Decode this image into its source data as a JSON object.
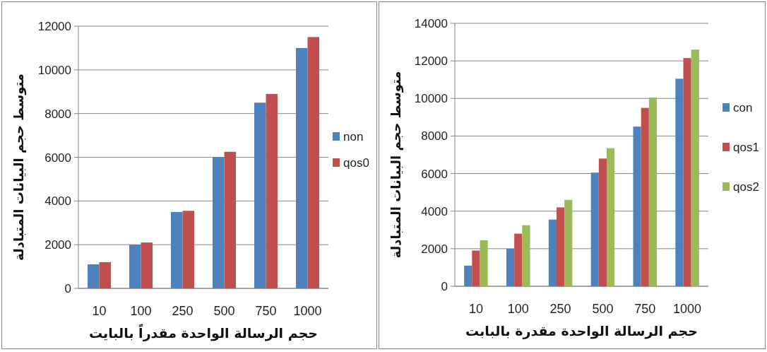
{
  "chart_data": [
    {
      "type": "bar",
      "categories": [
        "10",
        "100",
        "250",
        "500",
        "750",
        "1000"
      ],
      "xlabel": "حجم الرسالة الواحدة مقدراً بالبايت",
      "ylabel": "متوسط حجم البيانات المتبادلة",
      "ylim": [
        0,
        12000
      ],
      "yticks": [
        0,
        2000,
        4000,
        6000,
        8000,
        10000,
        12000
      ],
      "grid": "y",
      "legend": "right",
      "series": [
        {
          "name": "non",
          "color": "#4f81bd",
          "values": [
            1100,
            2000,
            3500,
            6000,
            8500,
            11000
          ]
        },
        {
          "name": "qos0",
          "color": "#c0504d",
          "values": [
            1200,
            2100,
            3550,
            6250,
            8900,
            11500
          ]
        }
      ]
    },
    {
      "type": "bar",
      "categories": [
        "10",
        "100",
        "250",
        "500",
        "750",
        "1000"
      ],
      "xlabel": "حجم الرسالة الواحدة مقدرة بالبابت",
      "ylabel": "متوسط حجم البيانات المتبادلة",
      "ylim": [
        0,
        14000
      ],
      "yticks": [
        0,
        2000,
        4000,
        6000,
        8000,
        10000,
        12000,
        14000
      ],
      "grid": "y",
      "legend": "right",
      "series": [
        {
          "name": "con",
          "color": "#4f81bd",
          "values": [
            1100,
            2000,
            3550,
            6050,
            8500,
            11050
          ]
        },
        {
          "name": "qos1",
          "color": "#c0504d",
          "values": [
            1900,
            2800,
            4200,
            6800,
            9500,
            12150
          ]
        },
        {
          "name": "qos2",
          "color": "#9bbb59",
          "values": [
            2450,
            3250,
            4600,
            7350,
            10050,
            12600
          ]
        }
      ]
    }
  ]
}
